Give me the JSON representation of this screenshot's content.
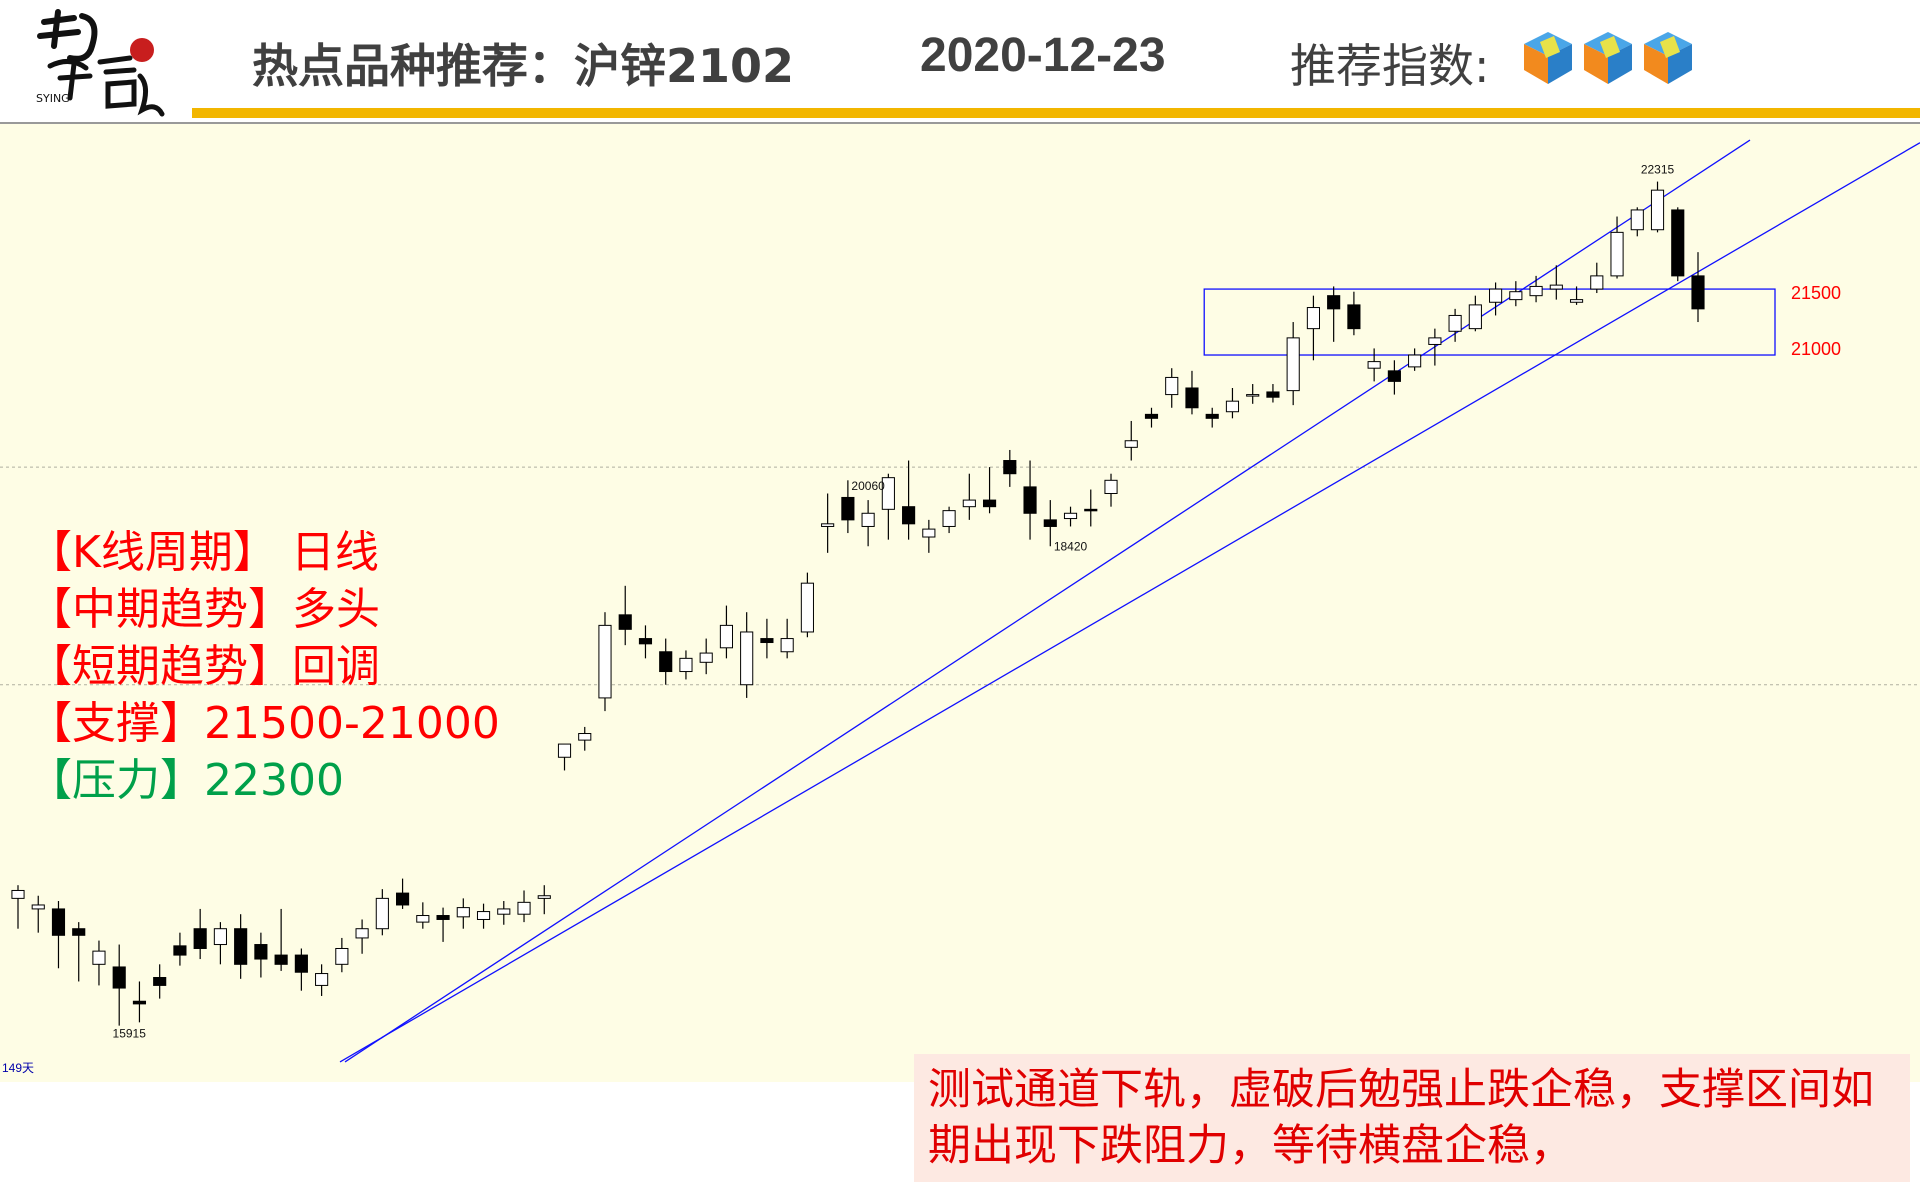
{
  "header": {
    "title": "热点品种推荐：沪锌2102",
    "date": "2020-12-23",
    "index_label": "推荐指数:",
    "index_cubes": 3
  },
  "info": {
    "period": "【K线周期】 日线",
    "mid_trend": "【中期趋势】多头",
    "short_trend": "【短期趋势】回调",
    "support": "【支撑】21500-21000",
    "pressure": "【压力】22300"
  },
  "comment": "测试通道下轨，虚破后勉强止跌企稳，支撑区间如期出现下跌阻力，等待横盘企稳，",
  "colors": {
    "accent_bar": "#f2b600",
    "chart_bg": "#fefde5",
    "channel_line": "#0000ff",
    "label_red": "#ff0000",
    "label_green": "#00a04a"
  },
  "chart_data": {
    "type": "candlestick",
    "period": "日线",
    "bars_label": "149天",
    "ylim": [
      15700,
      22600
    ],
    "ohlc": [
      [
        16880,
        16980,
        16650,
        16940
      ],
      [
        16800,
        16900,
        16620,
        16830
      ],
      [
        16800,
        16860,
        16350,
        16600
      ],
      [
        16650,
        16700,
        16250,
        16600
      ],
      [
        16380,
        16560,
        16220,
        16480
      ],
      [
        16360,
        16530,
        15915,
        16200
      ],
      [
        16100,
        16250,
        15940,
        16080
      ],
      [
        16280,
        16380,
        16120,
        16220
      ],
      [
        16520,
        16620,
        16370,
        16450
      ],
      [
        16650,
        16800,
        16420,
        16500
      ],
      [
        16530,
        16700,
        16380,
        16650
      ],
      [
        16650,
        16760,
        16270,
        16380
      ],
      [
        16530,
        16620,
        16280,
        16420
      ],
      [
        16450,
        16800,
        16330,
        16380
      ],
      [
        16450,
        16500,
        16180,
        16320
      ],
      [
        16220,
        16380,
        16140,
        16310
      ],
      [
        16380,
        16580,
        16320,
        16500
      ],
      [
        16580,
        16720,
        16460,
        16650
      ],
      [
        16650,
        16950,
        16600,
        16880
      ],
      [
        16920,
        17030,
        16800,
        16830
      ],
      [
        16700,
        16850,
        16650,
        16750
      ],
      [
        16750,
        16810,
        16550,
        16720
      ],
      [
        16740,
        16880,
        16650,
        16810
      ],
      [
        16720,
        16840,
        16650,
        16780
      ],
      [
        16760,
        16860,
        16680,
        16800
      ],
      [
        16760,
        16940,
        16700,
        16850
      ],
      [
        16880,
        16980,
        16760,
        16900
      ],
      [
        17950,
        18050,
        17850,
        18050
      ],
      [
        18080,
        18180,
        18000,
        18130
      ],
      [
        18400,
        19050,
        18300,
        18950
      ],
      [
        19030,
        19250,
        18800,
        18920
      ],
      [
        18850,
        18950,
        18700,
        18810
      ],
      [
        18750,
        18850,
        18500,
        18600
      ],
      [
        18600,
        18760,
        18540,
        18700
      ],
      [
        18670,
        18850,
        18580,
        18740
      ],
      [
        18780,
        19100,
        18700,
        18950
      ],
      [
        18500,
        19050,
        18400,
        18900
      ],
      [
        18850,
        19000,
        18700,
        18820
      ],
      [
        18750,
        19000,
        18700,
        18850
      ],
      [
        18900,
        19350,
        18860,
        19270
      ],
      [
        19700,
        19950,
        19500,
        19720
      ],
      [
        19920,
        20050,
        19650,
        19750
      ],
      [
        19700,
        19900,
        19550,
        19800
      ],
      [
        19830,
        20100,
        19600,
        20070
      ],
      [
        19850,
        20200,
        19600,
        19720
      ],
      [
        19620,
        19750,
        19500,
        19680
      ],
      [
        19700,
        19850,
        19650,
        19820
      ],
      [
        19850,
        20100,
        19750,
        19900
      ],
      [
        19900,
        20150,
        19800,
        19850
      ],
      [
        20200,
        20280,
        20000,
        20100
      ],
      [
        20000,
        20200,
        19600,
        19800
      ],
      [
        19750,
        19900,
        19550,
        19700
      ],
      [
        19760,
        19850,
        19700,
        19800
      ],
      [
        19830,
        19980,
        19700,
        19820
      ],
      [
        19950,
        20100,
        19850,
        20050
      ],
      [
        20300,
        20500,
        20200,
        20350
      ],
      [
        20550,
        20600,
        20450,
        20520
      ],
      [
        20700,
        20900,
        20600,
        20830
      ],
      [
        20750,
        20880,
        20550,
        20600
      ],
      [
        20550,
        20600,
        20450,
        20520
      ],
      [
        20570,
        20750,
        20520,
        20650
      ],
      [
        20700,
        20780,
        20630,
        20700
      ],
      [
        20720,
        20780,
        20640,
        20680
      ],
      [
        20730,
        21250,
        20620,
        21130
      ],
      [
        21200,
        21450,
        20960,
        21360
      ],
      [
        21450,
        21520,
        21100,
        21350
      ],
      [
        21380,
        21480,
        21150,
        21200
      ],
      [
        20900,
        21050,
        20800,
        20950
      ],
      [
        20880,
        20960,
        20700,
        20800
      ],
      [
        20910,
        21050,
        20880,
        21000
      ],
      [
        21080,
        21200,
        20920,
        21130
      ],
      [
        21180,
        21350,
        21100,
        21300
      ],
      [
        21200,
        21450,
        21180,
        21380
      ],
      [
        21400,
        21550,
        21300,
        21500
      ],
      [
        21420,
        21560,
        21370,
        21480
      ],
      [
        21450,
        21600,
        21400,
        21520
      ],
      [
        21500,
        21680,
        21420,
        21530
      ],
      [
        21400,
        21520,
        21380,
        21420
      ],
      [
        21500,
        21700,
        21470,
        21600
      ],
      [
        21600,
        22050,
        21580,
        21930
      ],
      [
        21950,
        22120,
        21900,
        22100
      ],
      [
        21950,
        22315,
        21930,
        22250
      ],
      [
        22100,
        22120,
        21560,
        21600
      ],
      [
        21600,
        21780,
        21250,
        21350
      ]
    ],
    "ohlc_segments": [],
    "annotations": [
      {
        "text": "22315",
        "value": 22315
      },
      {
        "text": "20060",
        "value": 20060
      },
      {
        "text": "18420",
        "value": 18420
      },
      {
        "text": "15915",
        "value": 15915
      }
    ],
    "box": {
      "top": 21500,
      "bottom": 21000,
      "labels": [
        "21500",
        "21000"
      ]
    },
    "support": [
      21000,
      21500
    ],
    "pressure": 22300,
    "grid": {
      "horizontal_dashed": true
    }
  }
}
